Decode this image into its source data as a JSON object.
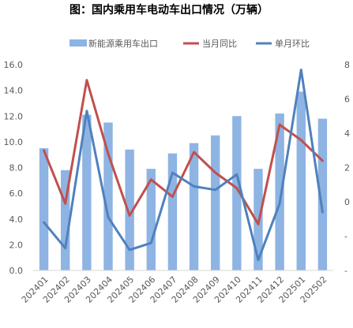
{
  "chart_data": {
    "type": "bar",
    "title": "图：国内乘用车电动车出口情况（万辆）",
    "categories": [
      "202401",
      "202402",
      "202403",
      "202404",
      "202405",
      "202406",
      "202407",
      "202408",
      "202409",
      "202410",
      "202411",
      "202412",
      "202501",
      "202502"
    ],
    "series": [
      {
        "name": "新能源乘用车出口",
        "type": "bar",
        "axis": "left",
        "color": "#8EB4E3",
        "values": [
          9.5,
          7.8,
          12.1,
          11.5,
          9.4,
          7.9,
          9.1,
          9.9,
          10.5,
          12.0,
          7.9,
          12.2,
          13.9,
          11.8
        ]
      },
      {
        "name": "当月同比",
        "type": "line",
        "axis": "right",
        "color": "#C0504D",
        "values": [
          3.0,
          -0.1,
          7.1,
          2.8,
          -0.8,
          1.3,
          0.3,
          2.9,
          1.7,
          0.8,
          -1.3,
          4.5,
          3.6,
          2.4
        ]
      },
      {
        "name": "单月环比",
        "type": "line",
        "axis": "right",
        "color": "#4F81BD",
        "values": [
          -1.2,
          -2.7,
          5.3,
          -0.9,
          -2.8,
          -2.4,
          1.7,
          0.9,
          0.7,
          1.6,
          -3.4,
          -0.1,
          7.7,
          -0.6
        ]
      }
    ],
    "y_left": {
      "min": 0,
      "max": 16,
      "step": 2,
      "tick_labels": [
        "0.0",
        "2.0",
        "4.0",
        "6.0",
        "8.0",
        "10.0",
        "12.0",
        "14.0",
        "16.0"
      ]
    },
    "y_right": {
      "min": -4,
      "max": 8,
      "step": 2,
      "tick_labels": [
        "-",
        "-",
        "0",
        "2",
        "4",
        "6",
        "8"
      ]
    },
    "grid": false,
    "legend_position": "top"
  }
}
